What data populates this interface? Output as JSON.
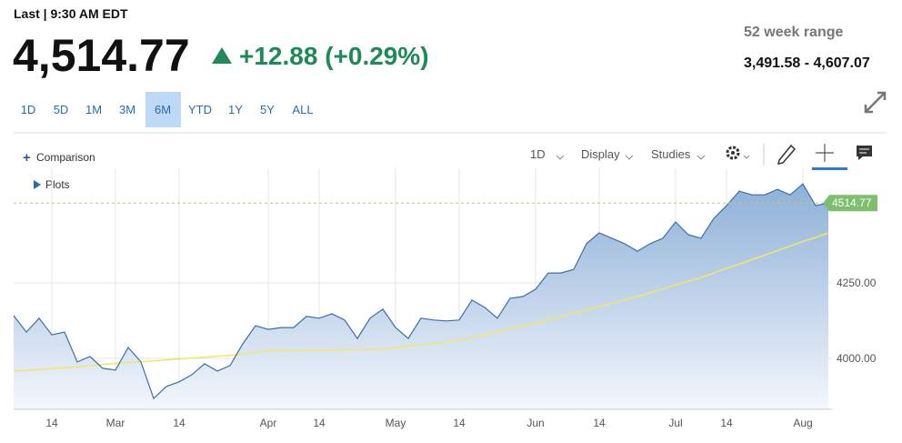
{
  "header": {
    "last": "Last | 9:30 AM EDT",
    "price": "4,514.77",
    "change": "+12.88 (+0.29%)",
    "range_title": "52 week range",
    "range_value": "3,491.58 - 4,607.07"
  },
  "ranges": [
    "1D",
    "5D",
    "1M",
    "3M",
    "6M",
    "YTD",
    "1Y",
    "5Y",
    "ALL"
  ],
  "selected_range": "6M",
  "toolbar": {
    "comparison": "Comparison",
    "interval": "1D",
    "display": "Display",
    "studies": "Studies",
    "plots": "Plots"
  },
  "chart_data": {
    "type": "line",
    "categories": [
      null,
      null,
      null,
      "14",
      null,
      null,
      null,
      null,
      "Mar",
      null,
      null,
      null,
      null,
      "14",
      null,
      null,
      null,
      null,
      null,
      null,
      "Apr",
      null,
      null,
      null,
      "14",
      null,
      null,
      null,
      null,
      null,
      "May",
      null,
      null,
      null,
      null,
      "14",
      null,
      null,
      null,
      null,
      null,
      "Jun",
      null,
      null,
      null,
      null,
      "14",
      null,
      null,
      null,
      null,
      null,
      "Jul",
      null,
      null,
      null,
      "14",
      null,
      null,
      null,
      null,
      null,
      "Aug",
      null,
      null
    ],
    "series": [
      {
        "color": "#3d6fa6",
        "values": [
          4142,
          4087,
          4133,
          4078,
          4087,
          3988,
          4006,
          3967,
          3961,
          4036,
          3988,
          3867,
          3907,
          3922,
          3946,
          3982,
          3958,
          3976,
          4048,
          4108,
          4096,
          4102,
          4102,
          4139,
          4133,
          4148,
          4127,
          4066,
          4133,
          4163,
          4102,
          4066,
          4133,
          4127,
          4124,
          4127,
          4193,
          4169,
          4133,
          4199,
          4205,
          4229,
          4283,
          4283,
          4295,
          4380,
          4416,
          4398,
          4380,
          4355,
          4380,
          4398,
          4452,
          4410,
          4398,
          4464,
          4506,
          4554,
          4542,
          4542,
          4560,
          4542,
          4578,
          4506,
          4514.77
        ]
      },
      {
        "color": "#f2e66a",
        "values": [
          3958,
          3960,
          3963,
          3966,
          3969,
          3972,
          3976,
          3980,
          3983,
          3986,
          3989,
          3992,
          3995,
          3998,
          4001,
          4004,
          4007,
          4010,
          4014,
          4020,
          4026,
          4027,
          4027,
          4028,
          4028,
          4028,
          4029,
          4029,
          4030,
          4031,
          4035,
          4040,
          4045,
          4050,
          4054,
          4059,
          4069,
          4078,
          4088,
          4098,
          4107,
          4117,
          4128,
          4139,
          4150,
          4161,
          4172,
          4183,
          4194,
          4205,
          4218,
          4230,
          4243,
          4256,
          4268,
          4283,
          4298,
          4312,
          4327,
          4342,
          4357,
          4372,
          4387,
          4401,
          4416
        ]
      }
    ],
    "ylim": [
      3831,
      4630
    ],
    "yticks": [
      {
        "value": 4000,
        "label": "4000.00"
      },
      {
        "value": 4250,
        "label": "4250.00"
      }
    ],
    "grid": true
  }
}
